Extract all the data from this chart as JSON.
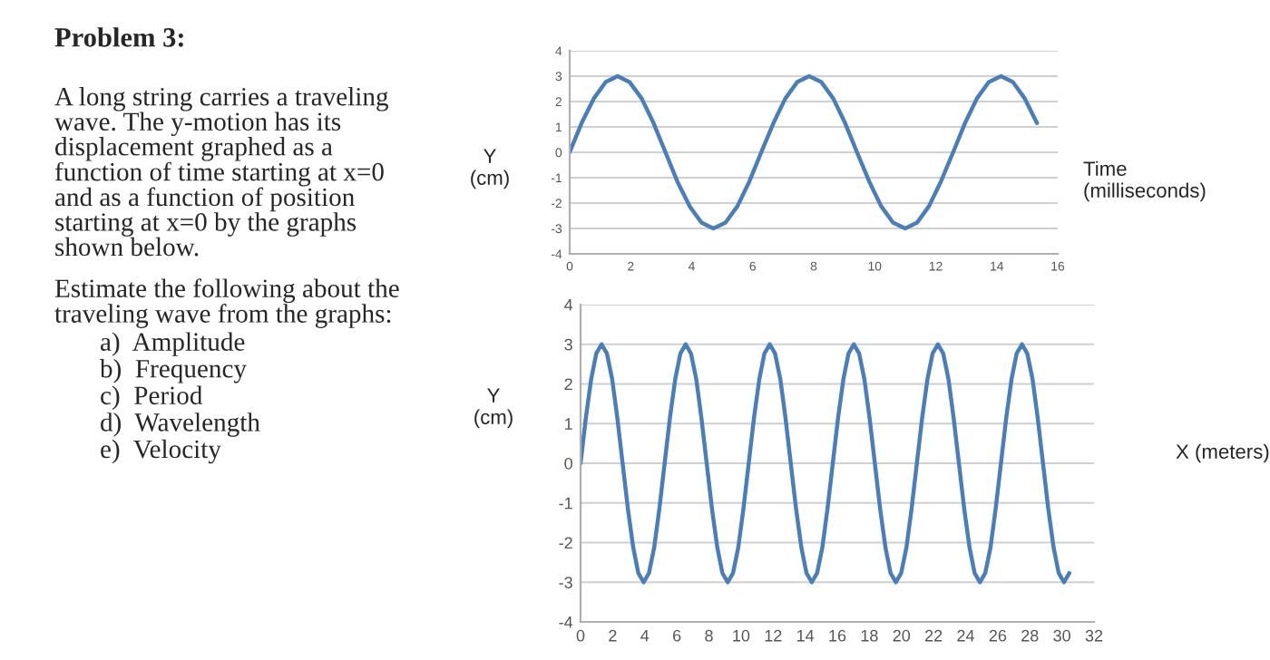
{
  "chart_data": [
    {
      "type": "other",
      "title": "Problem 3:",
      "annotations": [
        "A long string carries a traveling\nwave. The y-motion has its\ndisplacement graphed as a\nfunction of time starting at x=0\nand as a function of position\nstarting at x=0 by the graphs\nshown below.",
        "Estimate the following about the\ntraveling wave from the graphs:",
        "a)  Amplitude",
        "b)  Frequency",
        "c)  Period",
        "d)  Wavelength",
        "e)  Velocity"
      ]
    },
    {
      "type": "line",
      "ylabel": "Y\n(cm)",
      "xlabel": "Time\n(milliseconds)",
      "xlim": [
        0,
        16
      ],
      "xticks": [
        0,
        2,
        4,
        6,
        8,
        10,
        12,
        14,
        16
      ],
      "ylim": [
        -4,
        4
      ],
      "yticks": [
        -4,
        -3,
        -2,
        -1,
        0,
        1,
        2,
        3,
        4
      ],
      "grid": "y",
      "line_style": "solid",
      "series": [
        {
          "color": "#4a7ebb",
          "x": [
            0,
            0.39,
            0.79,
            1.18,
            1.57,
            1.96,
            2.36,
            2.75,
            3.14,
            3.53,
            3.93,
            4.32,
            4.71,
            5.11,
            5.5,
            5.89,
            6.28,
            6.68,
            7.07,
            7.46,
            7.85,
            8.25,
            8.64,
            9.03,
            9.42,
            9.82,
            10.21,
            10.6,
            11.0,
            11.39,
            11.78,
            12.17,
            12.57,
            12.96,
            13.35,
            13.74,
            14.14,
            14.53,
            14.92,
            15.32
          ],
          "values": [
            0,
            1.15,
            2.12,
            2.77,
            3,
            2.77,
            2.12,
            1.15,
            0,
            -1.15,
            -2.12,
            -2.77,
            -3,
            -2.77,
            -2.12,
            -1.15,
            0,
            1.15,
            2.12,
            2.77,
            3,
            2.77,
            2.12,
            1.15,
            0,
            -1.15,
            -2.12,
            -2.77,
            -3,
            -2.77,
            -2.12,
            -1.15,
            0,
            1.15,
            2.12,
            2.77,
            3,
            2.77,
            2.12,
            1.15
          ]
        }
      ]
    },
    {
      "type": "line",
      "ylabel": "Y\n(cm)",
      "xlabel": "X (meters)",
      "xlim": [
        0,
        32
      ],
      "xticks": [
        0,
        2,
        4,
        6,
        8,
        10,
        12,
        14,
        16,
        18,
        20,
        22,
        24,
        26,
        28,
        30,
        32
      ],
      "ylim": [
        -4,
        4
      ],
      "yticks": [
        -4,
        -3,
        -2,
        -1,
        0,
        1,
        2,
        3,
        4
      ],
      "grid": "y",
      "line_style": "solid",
      "series": [
        {
          "color": "#4a7ebb",
          "x": [
            0,
            0.33,
            0.66,
            0.98,
            1.31,
            1.64,
            1.97,
            2.29,
            2.62,
            2.95,
            3.28,
            3.6,
            3.93,
            4.26,
            4.59,
            4.91,
            5.24,
            5.57,
            5.9,
            6.22,
            6.55,
            6.88,
            7.21,
            7.53,
            7.86,
            8.19,
            8.52,
            8.84,
            9.17,
            9.5,
            9.83,
            10.15,
            10.48,
            10.81,
            11.14,
            11.46,
            11.79,
            12.12,
            12.45,
            12.77,
            13.1,
            13.43,
            13.76,
            14.08,
            14.41,
            14.74,
            15.07,
            15.39,
            15.72,
            16.05,
            16.38,
            16.7,
            17.03,
            17.36,
            17.69,
            18.01,
            18.34,
            18.67,
            19.0,
            19.32,
            19.65,
            19.98,
            20.31,
            20.63,
            20.96,
            21.29,
            21.62,
            21.94,
            22.27,
            22.6,
            22.93,
            23.25,
            23.58,
            23.91,
            24.24,
            24.56,
            24.89,
            25.22,
            25.55,
            25.87,
            26.2,
            26.53,
            26.86,
            27.18,
            27.51,
            27.84,
            28.17,
            28.49,
            28.82,
            29.15,
            29.48,
            29.8,
            30.13,
            30.46
          ],
          "values": [
            0,
            1.15,
            2.12,
            2.77,
            3,
            2.77,
            2.12,
            1.15,
            0,
            -1.15,
            -2.12,
            -2.77,
            -3,
            -2.77,
            -2.12,
            -1.15,
            0,
            1.15,
            2.12,
            2.77,
            3,
            2.77,
            2.12,
            1.15,
            0,
            -1.15,
            -2.12,
            -2.77,
            -3,
            -2.77,
            -2.12,
            -1.15,
            0,
            1.15,
            2.12,
            2.77,
            3,
            2.77,
            2.12,
            1.15,
            0,
            -1.15,
            -2.12,
            -2.77,
            -3,
            -2.77,
            -2.12,
            -1.15,
            0,
            1.15,
            2.12,
            2.77,
            3,
            2.77,
            2.12,
            1.15,
            0,
            -1.15,
            -2.12,
            -2.77,
            -3,
            -2.77,
            -2.12,
            -1.15,
            0,
            1.15,
            2.12,
            2.77,
            3,
            2.77,
            2.12,
            1.15,
            0,
            -1.15,
            -2.12,
            -2.77,
            -3,
            -2.77,
            -2.12,
            -1.15,
            0,
            1.15,
            2.12,
            2.77,
            3,
            2.77,
            2.12,
            1.15,
            0,
            -1.15,
            -2.12,
            -2.77,
            -3,
            -2.77
          ]
        }
      ]
    }
  ]
}
